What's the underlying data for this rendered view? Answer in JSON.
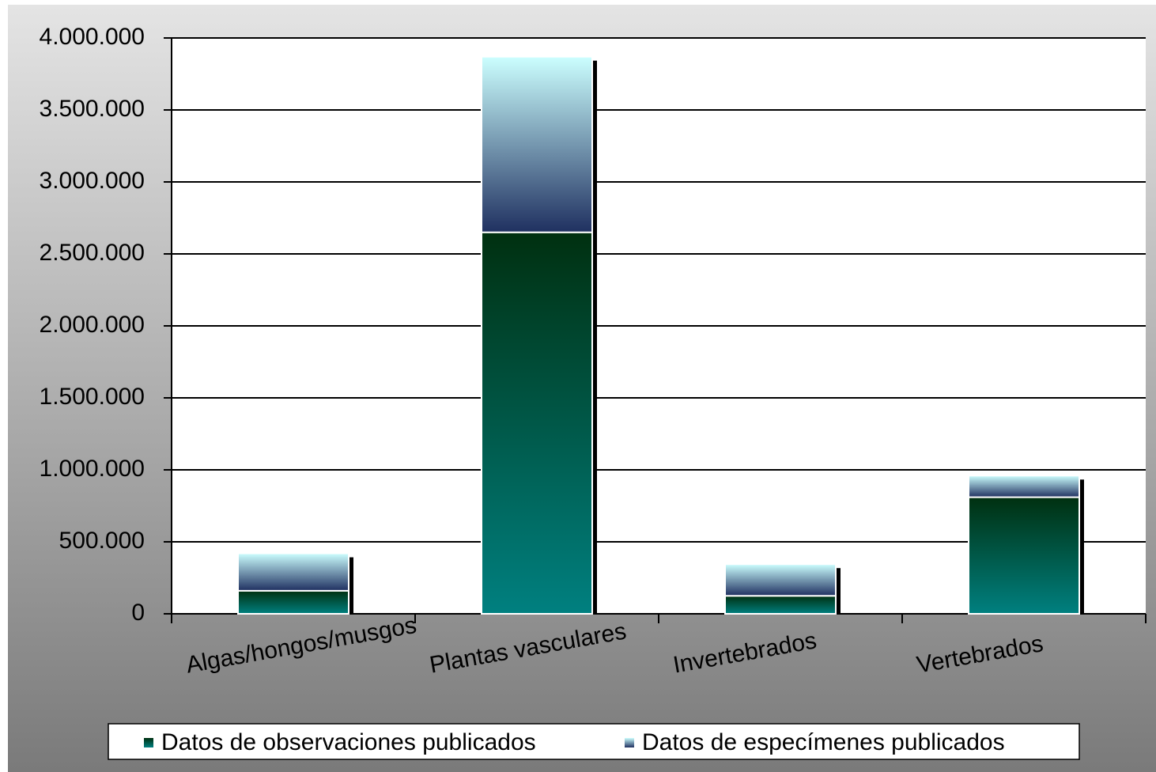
{
  "chart_data": {
    "type": "stacked_bar",
    "categories": [
      "Algas/hongos/musgos",
      "Plantas vasculares",
      "Invertebrados",
      "Vertebrados"
    ],
    "series": [
      {
        "name": "Datos de observaciones publicados",
        "color": "#008080",
        "values": [
          160000,
          2650000,
          125000,
          810000
        ]
      },
      {
        "name": "Datos de especímenes publicados",
        "color": "#ccffff",
        "values": [
          260000,
          1220000,
          220000,
          150000
        ]
      }
    ],
    "ylim": [
      0,
      4000000
    ],
    "yticks": [
      0,
      {
        "value": 500000,
        "label": "500.000"
      },
      {
        "value": 1000000,
        "label": "1.000.000"
      },
      {
        "value": 1500000,
        "label": "1.500.000"
      },
      {
        "value": 2000000,
        "label": "2.000.000"
      },
      {
        "value": 2500000,
        "label": "2.500.000"
      },
      {
        "value": 3000000,
        "label": "3.000.000"
      },
      {
        "value": 3500000,
        "label": "3.500.000"
      },
      {
        "value": 4000000,
        "label": "4.000.000"
      }
    ],
    "grid": true,
    "legend": "bottom"
  }
}
